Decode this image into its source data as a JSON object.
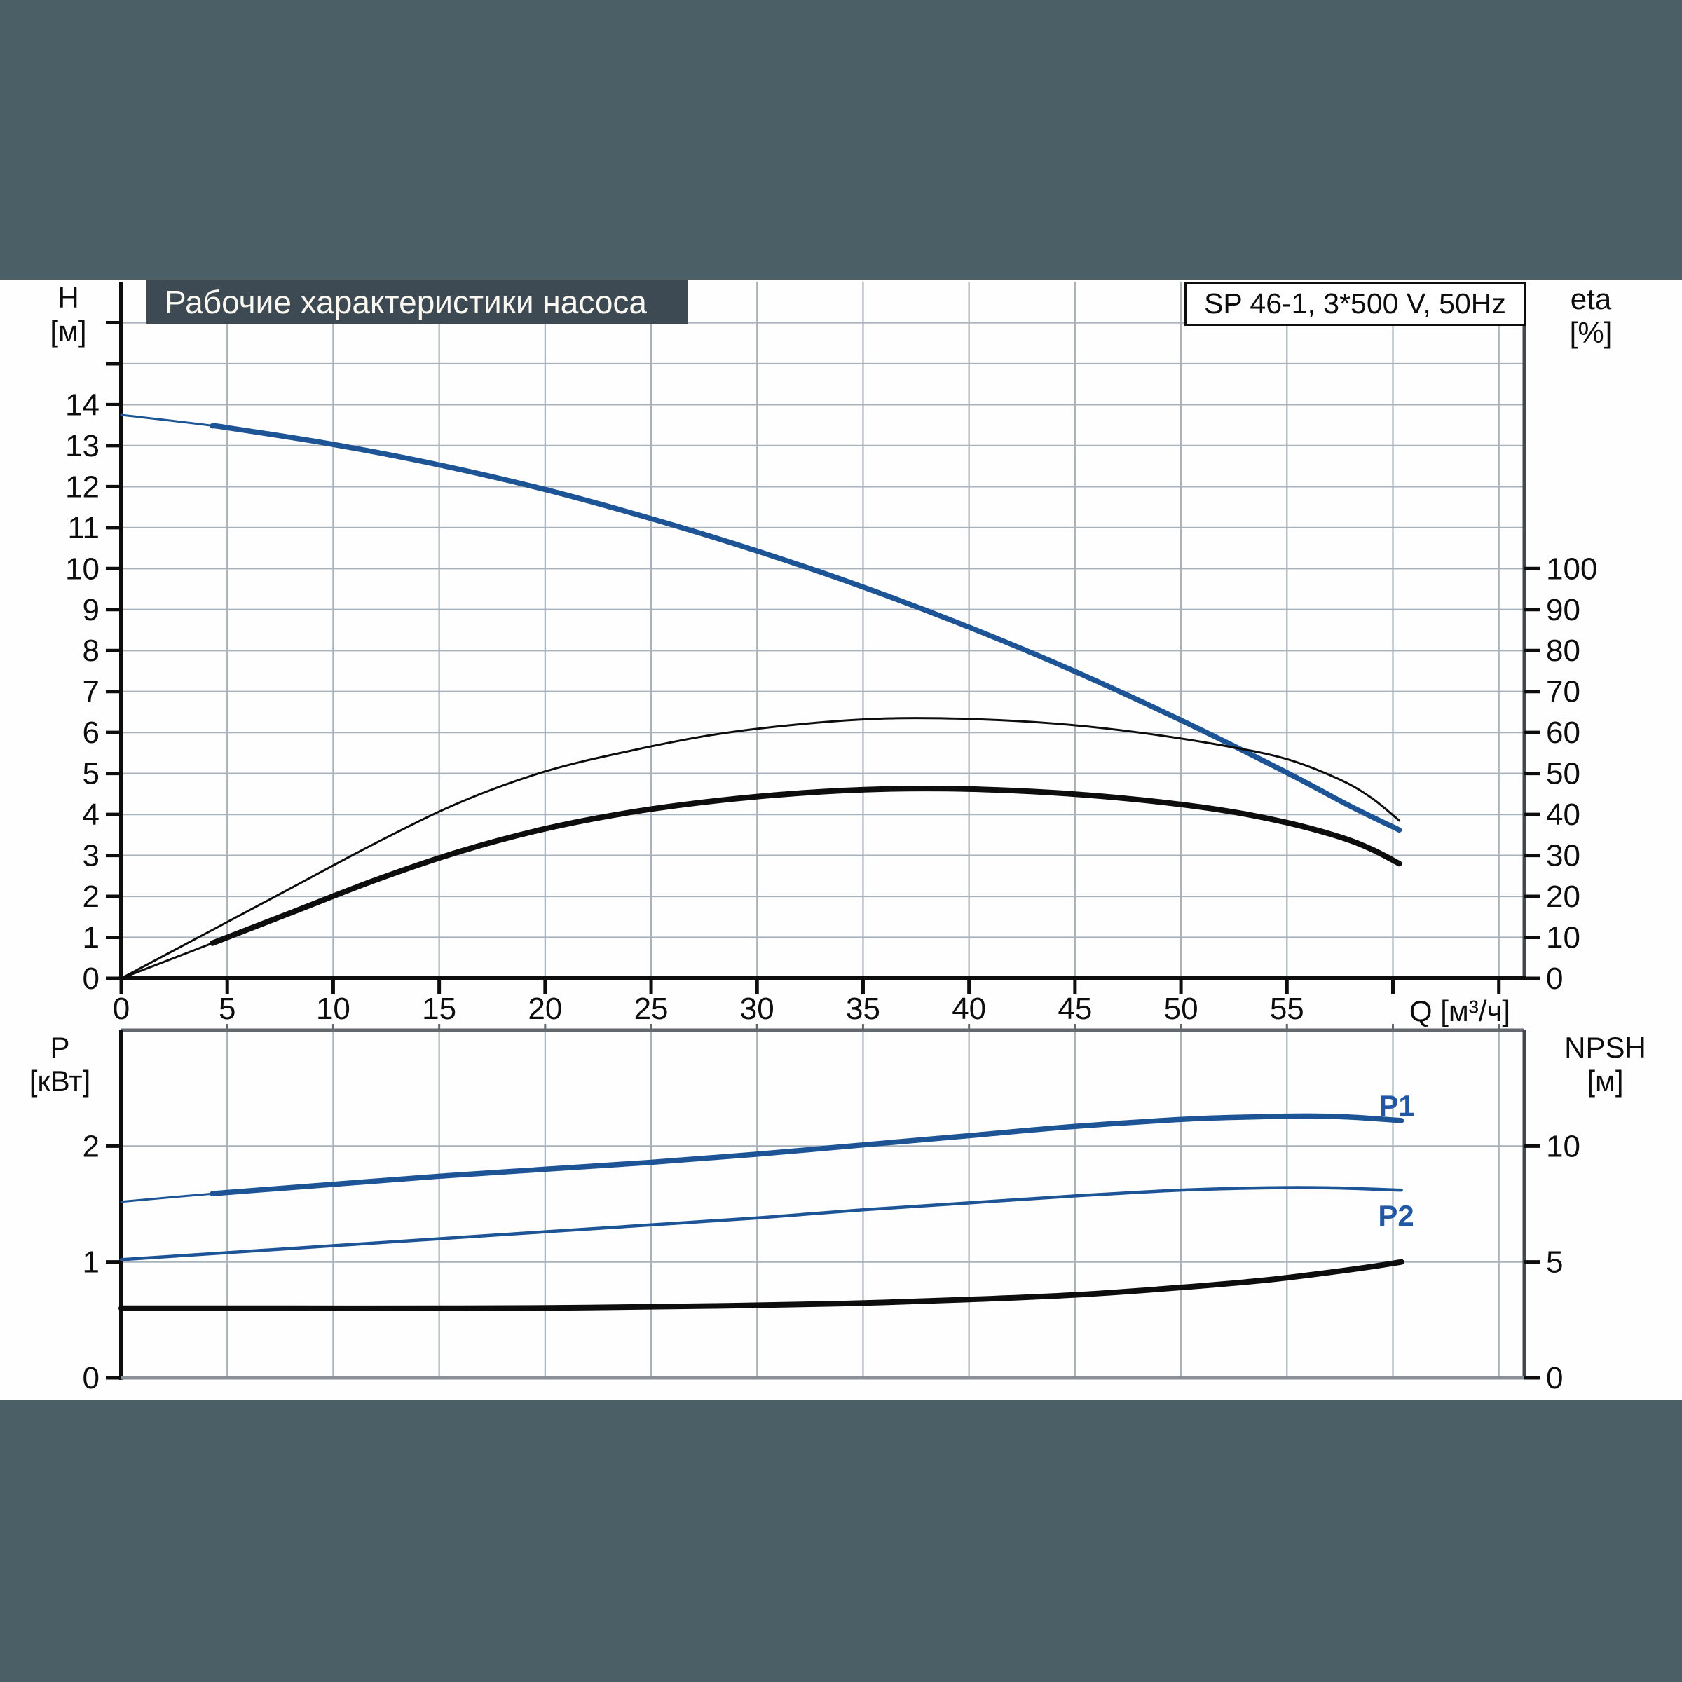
{
  "header": {
    "title": "Рабочие характеристики насоса",
    "pump_info": "SP 46-1, 3*500 V, 50Hz"
  },
  "colors": {
    "curve_blue": "#1d5496",
    "curve_black": "#0d0d0d",
    "label_blue": "#2257a5",
    "grid": "#a9b1ba",
    "band_background": "#4b5f67",
    "title_bar_background": "#3d4a54"
  },
  "chart_data": [
    {
      "type": "line",
      "id": "pump-performance",
      "title": "Рабочие характеристики насоса",
      "x_axis": {
        "label": "Q [м³/ч]",
        "min": 0,
        "max": 66.2,
        "grid_step": 5,
        "tick_labels": [
          0,
          5,
          10,
          15,
          20,
          25,
          30,
          35,
          40,
          45,
          50,
          55
        ]
      },
      "y_left": {
        "name": "H",
        "unit": "[м]",
        "min": 0,
        "max": 17.0,
        "grid_step": 1,
        "tick_labels": [
          0,
          1,
          2,
          3,
          4,
          5,
          6,
          7,
          8,
          9,
          10,
          11,
          12,
          13,
          14
        ]
      },
      "y_right": {
        "name": "eta",
        "unit": "[%]",
        "min": 0,
        "max": 170,
        "tick_labels": [
          0,
          10,
          20,
          30,
          40,
          50,
          60,
          70,
          80,
          90,
          100
        ]
      },
      "grid": true,
      "legend_position": "none",
      "series": [
        {
          "name": "H-curve",
          "axis": "left",
          "color": "blue",
          "width": 7.5,
          "thin_width": 3,
          "thin_until": 4.3,
          "points": [
            [
              0,
              13.75
            ],
            [
              5,
              13.44
            ],
            [
              10,
              13.03
            ],
            [
              15,
              12.53
            ],
            [
              20,
              11.93
            ],
            [
              25,
              11.22
            ],
            [
              30,
              10.43
            ],
            [
              35,
              9.55
            ],
            [
              40,
              8.57
            ],
            [
              45,
              7.49
            ],
            [
              50,
              6.3
            ],
            [
              55,
              5.02
            ],
            [
              58,
              4.2
            ],
            [
              60.3,
              3.62
            ]
          ]
        },
        {
          "name": "eta-pump",
          "axis": "right",
          "color": "black",
          "width": 3,
          "points": [
            [
              0,
              0
            ],
            [
              4,
              11
            ],
            [
              8,
              22
            ],
            [
              12,
              33
            ],
            [
              16,
              43
            ],
            [
              20,
              50.5
            ],
            [
              24,
              55.5
            ],
            [
              28,
              59.5
            ],
            [
              32,
              62
            ],
            [
              36,
              63.4
            ],
            [
              40,
              63.3
            ],
            [
              44,
              62.2
            ],
            [
              48,
              60
            ],
            [
              52,
              56.8
            ],
            [
              55,
              53.5
            ],
            [
              57.5,
              48.5
            ],
            [
              59,
              44
            ],
            [
              60.3,
              38.5
            ]
          ]
        },
        {
          "name": "eta-pump-motor",
          "axis": "right",
          "color": "black",
          "width": 8,
          "thin_width": 3,
          "thin_until": 4.3,
          "points": [
            [
              0,
              0
            ],
            [
              4,
              8
            ],
            [
              8,
              16
            ],
            [
              12,
              24
            ],
            [
              16,
              31
            ],
            [
              20,
              36.5
            ],
            [
              24,
              40.5
            ],
            [
              28,
              43.3
            ],
            [
              32,
              45.2
            ],
            [
              36,
              46.2
            ],
            [
              40,
              46.2
            ],
            [
              44,
              45.3
            ],
            [
              48,
              43.6
            ],
            [
              52,
              41
            ],
            [
              55,
              38
            ],
            [
              57.5,
              34.5
            ],
            [
              59,
              31.5
            ],
            [
              60.3,
              28
            ]
          ]
        }
      ]
    },
    {
      "type": "line",
      "id": "power-npsh",
      "x_axis": {
        "label": "",
        "min": 0,
        "max": 66.2,
        "grid_step": 5,
        "tick_labels": []
      },
      "y_left": {
        "name": "P",
        "unit": "[кВт]",
        "min": 0,
        "max": 3.0,
        "grid_step": 1,
        "tick_labels": [
          0,
          1,
          2
        ]
      },
      "y_right": {
        "name": "NPSH",
        "unit": "[м]",
        "min": 0,
        "max": 15,
        "tick_labels": [
          0,
          5,
          10
        ]
      },
      "grid": true,
      "legend_position": "inline",
      "series": [
        {
          "name": "P1",
          "label": "P1",
          "axis": "left",
          "color": "blue",
          "width": 7.5,
          "thin_width": 3,
          "thin_until": 4.3,
          "points": [
            [
              0,
              1.52
            ],
            [
              5,
              1.6
            ],
            [
              10,
              1.67
            ],
            [
              15,
              1.74
            ],
            [
              20,
              1.8
            ],
            [
              25,
              1.86
            ],
            [
              30,
              1.93
            ],
            [
              35,
              2.01
            ],
            [
              40,
              2.09
            ],
            [
              45,
              2.17
            ],
            [
              50,
              2.23
            ],
            [
              53,
              2.25
            ],
            [
              56,
              2.26
            ],
            [
              58,
              2.25
            ],
            [
              60.4,
              2.22
            ]
          ]
        },
        {
          "name": "P2",
          "label": "P2",
          "axis": "left",
          "color": "blue",
          "width": 4.5,
          "points": [
            [
              0,
              1.02
            ],
            [
              5,
              1.08
            ],
            [
              10,
              1.14
            ],
            [
              15,
              1.2
            ],
            [
              20,
              1.26
            ],
            [
              25,
              1.32
            ],
            [
              30,
              1.38
            ],
            [
              35,
              1.45
            ],
            [
              40,
              1.51
            ],
            [
              45,
              1.57
            ],
            [
              50,
              1.62
            ],
            [
              54,
              1.64
            ],
            [
              57,
              1.64
            ],
            [
              60.4,
              1.62
            ]
          ]
        },
        {
          "name": "NPSH-curve",
          "axis": "right",
          "color": "black",
          "width": 8,
          "points": [
            [
              0,
              3.0
            ],
            [
              8,
              3.0
            ],
            [
              16,
              3.0
            ],
            [
              22,
              3.03
            ],
            [
              28,
              3.1
            ],
            [
              34,
              3.2
            ],
            [
              40,
              3.38
            ],
            [
              45,
              3.58
            ],
            [
              50,
              3.9
            ],
            [
              54,
              4.22
            ],
            [
              57,
              4.55
            ],
            [
              59,
              4.8
            ],
            [
              60.4,
              5.0
            ]
          ]
        }
      ]
    }
  ]
}
